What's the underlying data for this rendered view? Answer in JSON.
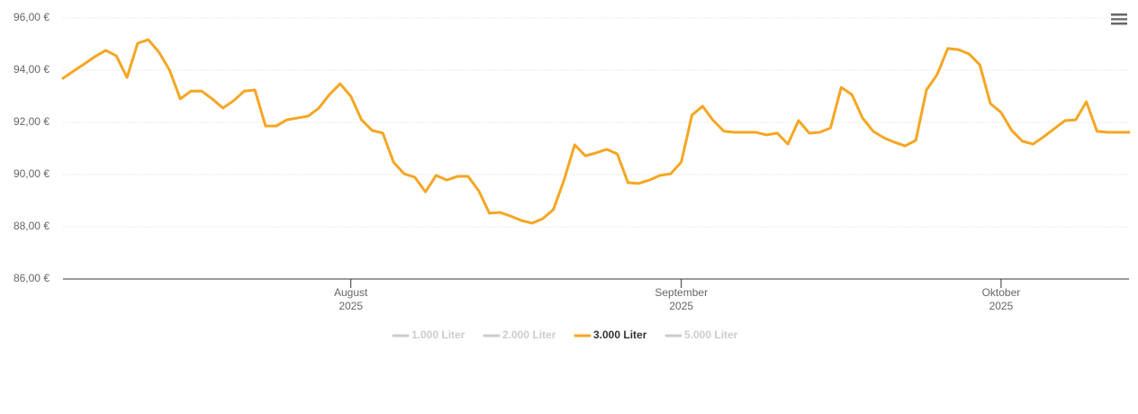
{
  "chart_data": {
    "type": "line",
    "categories": [
      null,
      null,
      null,
      null,
      null,
      null,
      null,
      null,
      null,
      null,
      null,
      null,
      null,
      null,
      null,
      null,
      null,
      null,
      null,
      null,
      null,
      null,
      null,
      null,
      null,
      null,
      null,
      null,
      null,
      null,
      null,
      null,
      null,
      null,
      null,
      null,
      null,
      null,
      null,
      null,
      null,
      null,
      null,
      null,
      null,
      null,
      null,
      null,
      null,
      null,
      null,
      null,
      null,
      null,
      null,
      null,
      null,
      null,
      null,
      null,
      null,
      null,
      null,
      null,
      null,
      null,
      null,
      null,
      null,
      null,
      null,
      null,
      null,
      null,
      null,
      null,
      null,
      null,
      null,
      null,
      null,
      null,
      null,
      null,
      null,
      null,
      null,
      null,
      null,
      null,
      null,
      null,
      null,
      null,
      null,
      null,
      null,
      null,
      null,
      null,
      null
    ],
    "xlim": [
      0,
      100
    ],
    "xticks": [
      {
        "value": 27,
        "label": [
          "August",
          "2025"
        ]
      },
      {
        "value": 58,
        "label": [
          "September",
          "2025"
        ]
      },
      {
        "value": 88,
        "label": [
          "Oktober",
          "2025"
        ]
      }
    ],
    "ylim": [
      86,
      96
    ],
    "yticks": [
      {
        "value": 86,
        "label": "86,00 €"
      },
      {
        "value": 88,
        "label": "88,00 €"
      },
      {
        "value": 90,
        "label": "90,00 €"
      },
      {
        "value": 92,
        "label": "92,00 €"
      },
      {
        "value": 94,
        "label": "94,00 €"
      },
      {
        "value": 96,
        "label": "96,00 €"
      }
    ],
    "grid": true,
    "legend": "bottom",
    "series": [
      {
        "name": "1.000 Liter",
        "color": "#cccccc"
      },
      {
        "name": "2.000 Liter",
        "color": "#cccccc"
      },
      {
        "name": "3.000 Liter",
        "color": "#f5a623",
        "values": [
          93.69,
          93.97,
          94.24,
          94.52,
          94.76,
          94.55,
          93.72,
          95.03,
          95.17,
          94.69,
          94.0,
          92.9,
          93.2,
          93.2,
          92.9,
          92.55,
          92.83,
          93.2,
          93.24,
          91.86,
          91.86,
          92.1,
          92.17,
          92.24,
          92.55,
          93.07,
          93.48,
          93.0,
          92.1,
          91.69,
          91.59,
          90.48,
          90.03,
          89.9,
          89.34,
          89.97,
          89.79,
          89.93,
          89.93,
          89.38,
          88.52,
          88.55,
          88.41,
          88.24,
          88.14,
          88.31,
          88.66,
          89.79,
          91.14,
          90.72,
          90.83,
          90.97,
          90.79,
          89.69,
          89.66,
          89.79,
          89.97,
          90.03,
          90.48,
          92.28,
          92.62,
          92.07,
          91.66,
          91.62,
          91.62,
          91.62,
          91.52,
          91.59,
          91.17,
          92.07,
          91.59,
          91.62,
          91.79,
          93.34,
          93.07,
          92.17,
          91.66,
          91.41,
          91.24,
          91.1,
          91.31,
          93.24,
          93.83,
          94.83,
          94.79,
          94.62,
          94.21,
          92.72,
          92.38,
          91.69,
          91.28,
          91.17,
          91.45,
          91.76,
          92.07,
          92.1,
          92.79,
          91.66,
          91.62,
          91.62,
          91.62
        ]
      },
      {
        "name": "5.000 Liter",
        "color": "#cccccc"
      }
    ]
  }
}
